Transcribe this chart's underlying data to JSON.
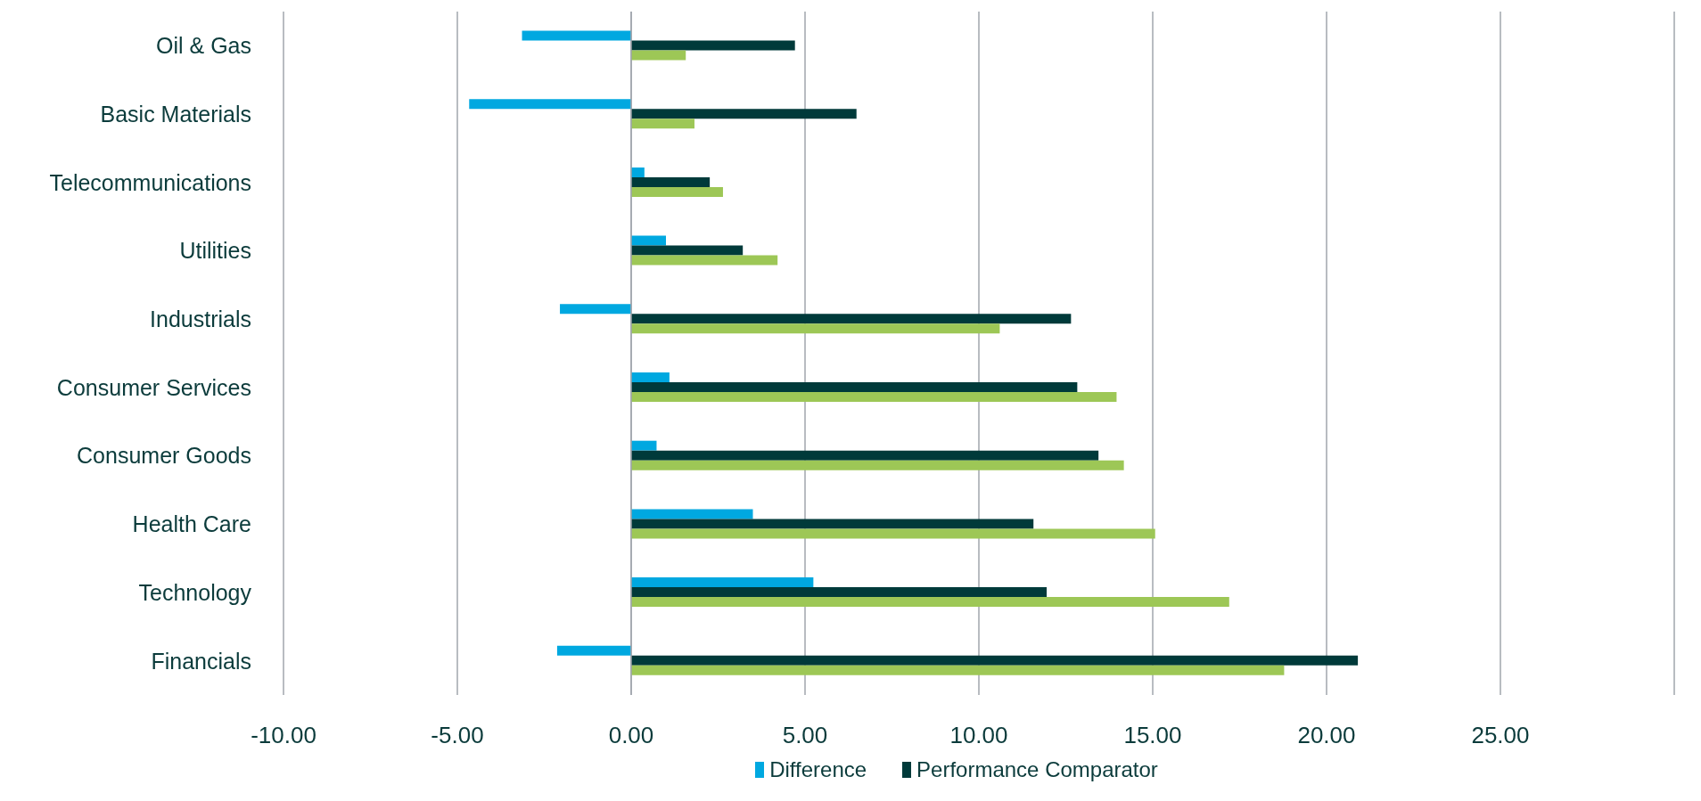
{
  "chart_data": {
    "type": "bar",
    "orientation": "horizontal",
    "categories": [
      "Oil & Gas",
      "Basic Materials",
      "Telecommunications",
      "Utilities",
      "Industrials",
      "Consumer Services",
      "Consumer Goods",
      "Health Care",
      "Technology",
      "Financials"
    ],
    "series": [
      {
        "name": "Difference",
        "color": "#00a8e0",
        "values": [
          -3.14,
          -4.66,
          0.38,
          1.0,
          -2.05,
          1.1,
          0.73,
          3.5,
          5.24,
          -2.13
        ]
      },
      {
        "name": "Performance Comparator",
        "color": "#003a3a",
        "values": [
          4.71,
          6.48,
          2.26,
          3.21,
          12.65,
          12.83,
          13.44,
          11.57,
          11.95,
          20.9
        ]
      },
      {
        "color": "#9dc756",
        "values": [
          1.57,
          1.82,
          2.64,
          4.21,
          10.6,
          13.96,
          14.17,
          15.07,
          17.2,
          18.78
        ]
      }
    ],
    "xlim": [
      -10,
      30
    ],
    "xticks": [
      {
        "value": -10,
        "label": "-10.00"
      },
      {
        "value": -5,
        "label": "-5.00"
      },
      {
        "value": 0,
        "label": "0.00"
      },
      {
        "value": 5,
        "label": "5.00"
      },
      {
        "value": 10,
        "label": "10.00"
      },
      {
        "value": 15,
        "label": "15.00"
      },
      {
        "value": 20,
        "label": "20.00"
      },
      {
        "value": 25,
        "label": "25.00"
      }
    ],
    "grid": "x",
    "legend": "bottom"
  }
}
